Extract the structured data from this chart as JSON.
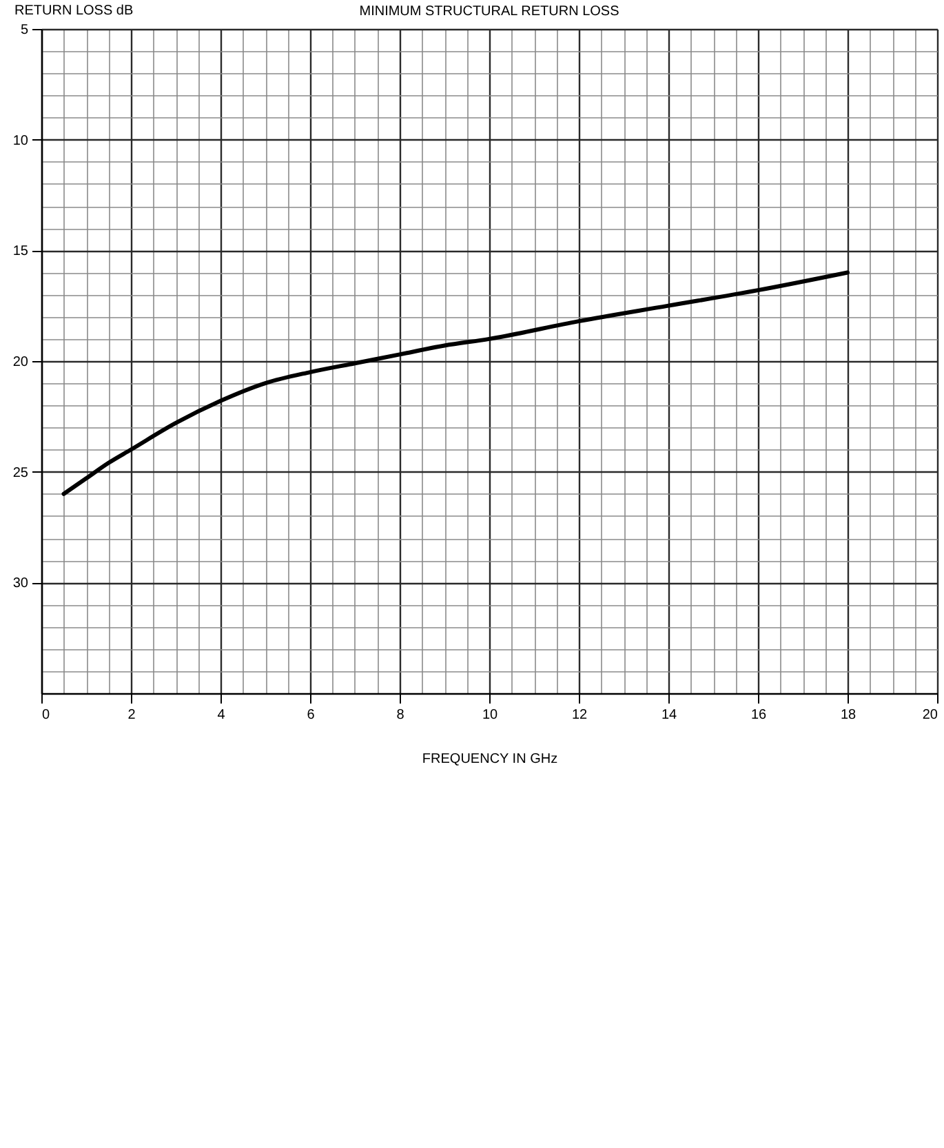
{
  "chart_data": {
    "type": "line",
    "title": "MINIMUM STRUCTURAL RETURN LOSS",
    "xlabel": "FREQUENCY IN GHz",
    "ylabel": "RETURN LOSS dB",
    "x": [
      0.5,
      1,
      1.5,
      2,
      3,
      4,
      5,
      6,
      7,
      8,
      9,
      10,
      12,
      14,
      16,
      18
    ],
    "series": [
      {
        "color": "#000000",
        "values": [
          26.0,
          25.3,
          24.6,
          24.0,
          22.8,
          21.8,
          21.0,
          20.5,
          20.1,
          19.7,
          19.3,
          19.0,
          18.2,
          17.5,
          16.8,
          16.0
        ]
      }
    ],
    "xlim": [
      0,
      20
    ],
    "ylim": [
      35,
      5
    ],
    "xticks": [
      0,
      {
        "value": 0.5,
        "label": null
      },
      {
        "value": 1,
        "label": null
      },
      {
        "value": 1.5,
        "label": null
      },
      2,
      {
        "value": 2.5,
        "label": null
      },
      {
        "value": 3,
        "label": null
      },
      {
        "value": 3.5,
        "label": null
      },
      4,
      {
        "value": 4.5,
        "label": null
      },
      {
        "value": 5,
        "label": null
      },
      {
        "value": 5.5,
        "label": null
      },
      6,
      {
        "value": 6.5,
        "label": null
      },
      {
        "value": 7,
        "label": null
      },
      {
        "value": 7.5,
        "label": null
      },
      8,
      {
        "value": 8.5,
        "label": null
      },
      {
        "value": 9,
        "label": null
      },
      {
        "value": 9.5,
        "label": null
      },
      10,
      {
        "value": 10.5,
        "label": null
      },
      {
        "value": 11,
        "label": null
      },
      {
        "value": 11.5,
        "label": null
      },
      12,
      {
        "value": 12.5,
        "label": null
      },
      {
        "value": 13,
        "label": null
      },
      {
        "value": 13.5,
        "label": null
      },
      14,
      {
        "value": 14.5,
        "label": null
      },
      {
        "value": 15,
        "label": null
      },
      {
        "value": 15.5,
        "label": null
      },
      16,
      {
        "value": 16.5,
        "label": null
      },
      {
        "value": 17,
        "label": null
      },
      {
        "value": 17.5,
        "label": null
      },
      18,
      {
        "value": 18.5,
        "label": null
      },
      {
        "value": 19,
        "label": null
      },
      {
        "value": 19.5,
        "label": null
      },
      20
    ],
    "yticks": [
      5,
      {
        "value": 6,
        "label": null
      },
      {
        "value": 7,
        "label": null
      },
      {
        "value": 8,
        "label": null
      },
      {
        "value": 9,
        "label": null
      },
      10,
      {
        "value": 11,
        "label": null
      },
      {
        "value": 12,
        "label": null
      },
      {
        "value": 13,
        "label": null
      },
      {
        "value": 14,
        "label": null
      },
      15,
      {
        "value": 16,
        "label": null
      },
      {
        "value": 17,
        "label": null
      },
      {
        "value": 18,
        "label": null
      },
      {
        "value": 19,
        "label": null
      },
      20,
      {
        "value": 21,
        "label": null
      },
      {
        "value": 22,
        "label": null
      },
      {
        "value": 23,
        "label": null
      },
      {
        "value": 24,
        "label": null
      },
      25,
      {
        "value": 26,
        "label": null
      },
      {
        "value": 27,
        "label": null
      },
      {
        "value": 28,
        "label": null
      },
      {
        "value": 29,
        "label": null
      },
      30,
      {
        "value": 31,
        "label": null
      },
      {
        "value": 32,
        "label": null
      },
      {
        "value": 33,
        "label": null
      },
      {
        "value": 34,
        "label": null
      }
    ],
    "grid": true,
    "line_style": "solid"
  }
}
